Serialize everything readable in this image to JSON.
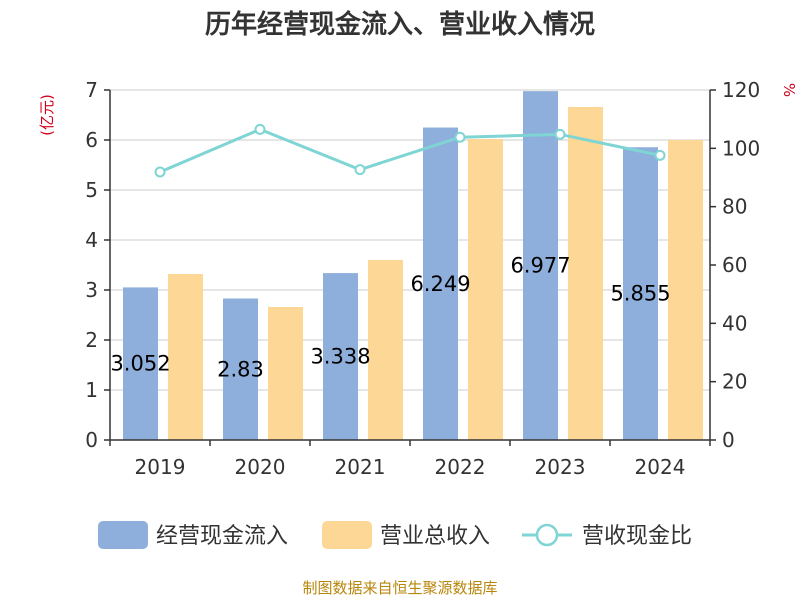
{
  "chart_data": {
    "type": "bar",
    "title": "历年经营现金流入、营业收入情况",
    "categories": [
      "2019",
      "2020",
      "2021",
      "2022",
      "2023",
      "2024"
    ],
    "series": [
      {
        "name": "经营现金流入",
        "kind": "bar",
        "axis": "left",
        "color": "#8eaedb",
        "values": [
          3.052,
          2.83,
          3.338,
          6.249,
          6.977,
          5.855
        ]
      },
      {
        "name": "营业总收入",
        "kind": "bar",
        "axis": "left",
        "color": "#fdd796",
        "values": [
          3.32,
          2.66,
          3.6,
          6.02,
          6.66,
          6.0
        ]
      },
      {
        "name": "营收现金比",
        "kind": "line",
        "axis": "right",
        "color": "#7fd4d4",
        "values": [
          91.9,
          106.5,
          92.7,
          103.8,
          104.8,
          97.6
        ]
      }
    ],
    "data_labels": [
      "3.052",
      "2.83",
      "3.338",
      "6.249",
      "6.977",
      "5.855"
    ],
    "left_axis": {
      "unit": "(亿元)",
      "min": 0,
      "max": 7,
      "ticks": [
        "0",
        "1",
        "2",
        "3",
        "4",
        "5",
        "6",
        "7"
      ]
    },
    "right_axis": {
      "unit": "%",
      "min": 0,
      "max": 120,
      "ticks": [
        "0",
        "20",
        "40",
        "60",
        "80",
        "100",
        "120"
      ]
    },
    "grid": true,
    "legend_position": "bottom"
  },
  "source": "制图数据来自恒生聚源数据库"
}
